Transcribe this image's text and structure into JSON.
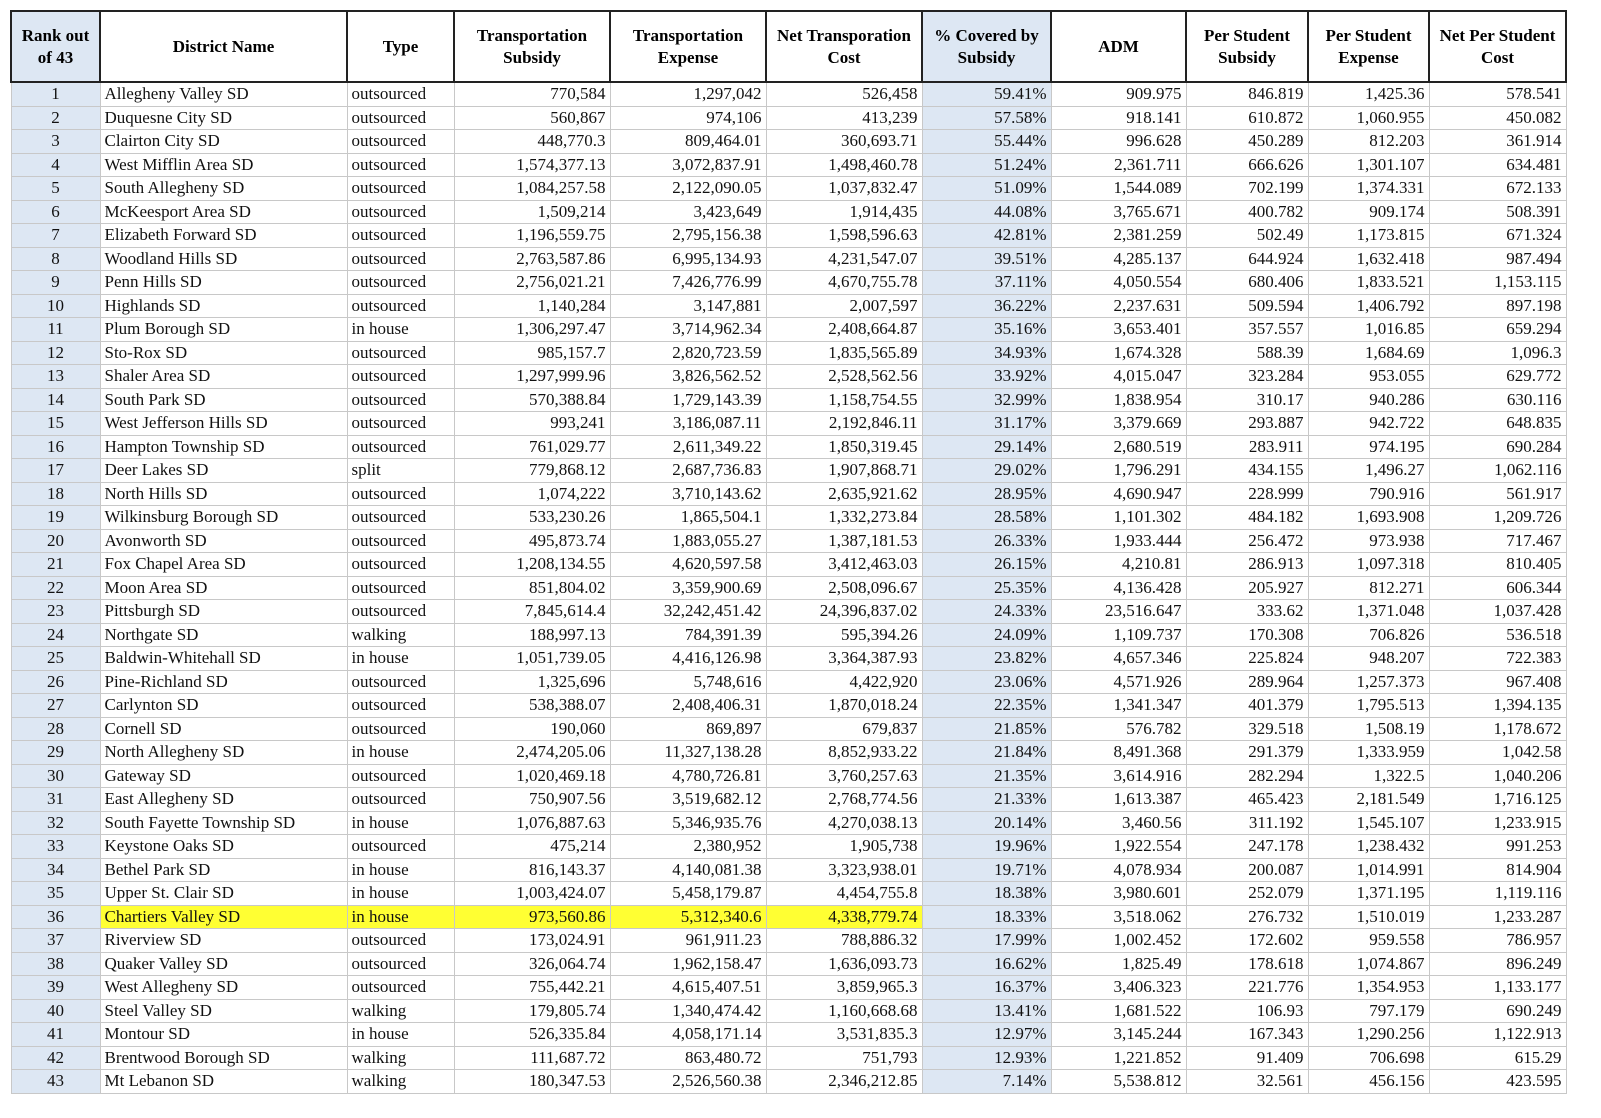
{
  "table": {
    "header": [
      "Rank out of 43",
      "District Name",
      "Type",
      "Transportation Subsidy",
      "Transportation Expense",
      "Net Transporation Cost",
      "% Covered by Subsidy",
      "ADM",
      "Per Student Subsidy",
      "Per Student Expense",
      "Net Per Student Cost"
    ],
    "rows": [
      [
        "1",
        "Allegheny Valley SD",
        "outsourced",
        "770,584",
        "1,297,042",
        "526,458",
        "59.41%",
        "909.975",
        "846.819",
        "1,425.36",
        "578.541"
      ],
      [
        "2",
        "Duquesne City SD",
        "outsourced",
        "560,867",
        "974,106",
        "413,239",
        "57.58%",
        "918.141",
        "610.872",
        "1,060.955",
        "450.082"
      ],
      [
        "3",
        "Clairton City SD",
        "outsourced",
        "448,770.3",
        "809,464.01",
        "360,693.71",
        "55.44%",
        "996.628",
        "450.289",
        "812.203",
        "361.914"
      ],
      [
        "4",
        "West Mifflin Area SD",
        "outsourced",
        "1,574,377.13",
        "3,072,837.91",
        "1,498,460.78",
        "51.24%",
        "2,361.711",
        "666.626",
        "1,301.107",
        "634.481"
      ],
      [
        "5",
        "South Allegheny SD",
        "outsourced",
        "1,084,257.58",
        "2,122,090.05",
        "1,037,832.47",
        "51.09%",
        "1,544.089",
        "702.199",
        "1,374.331",
        "672.133"
      ],
      [
        "6",
        "McKeesport Area SD",
        "outsourced",
        "1,509,214",
        "3,423,649",
        "1,914,435",
        "44.08%",
        "3,765.671",
        "400.782",
        "909.174",
        "508.391"
      ],
      [
        "7",
        "Elizabeth Forward SD",
        "outsourced",
        "1,196,559.75",
        "2,795,156.38",
        "1,598,596.63",
        "42.81%",
        "2,381.259",
        "502.49",
        "1,173.815",
        "671.324"
      ],
      [
        "8",
        "Woodland Hills SD",
        "outsourced",
        "2,763,587.86",
        "6,995,134.93",
        "4,231,547.07",
        "39.51%",
        "4,285.137",
        "644.924",
        "1,632.418",
        "987.494"
      ],
      [
        "9",
        "Penn Hills SD",
        "outsourced",
        "2,756,021.21",
        "7,426,776.99",
        "4,670,755.78",
        "37.11%",
        "4,050.554",
        "680.406",
        "1,833.521",
        "1,153.115"
      ],
      [
        "10",
        "Highlands SD",
        "outsourced",
        "1,140,284",
        "3,147,881",
        "2,007,597",
        "36.22%",
        "2,237.631",
        "509.594",
        "1,406.792",
        "897.198"
      ],
      [
        "11",
        "Plum Borough SD",
        "in house",
        "1,306,297.47",
        "3,714,962.34",
        "2,408,664.87",
        "35.16%",
        "3,653.401",
        "357.557",
        "1,016.85",
        "659.294"
      ],
      [
        "12",
        "Sto-Rox SD",
        "outsourced",
        "985,157.7",
        "2,820,723.59",
        "1,835,565.89",
        "34.93%",
        "1,674.328",
        "588.39",
        "1,684.69",
        "1,096.3"
      ],
      [
        "13",
        "Shaler Area SD",
        "outsourced",
        "1,297,999.96",
        "3,826,562.52",
        "2,528,562.56",
        "33.92%",
        "4,015.047",
        "323.284",
        "953.055",
        "629.772"
      ],
      [
        "14",
        "South Park SD",
        "outsourced",
        "570,388.84",
        "1,729,143.39",
        "1,158,754.55",
        "32.99%",
        "1,838.954",
        "310.17",
        "940.286",
        "630.116"
      ],
      [
        "15",
        "West Jefferson Hills SD",
        "outsourced",
        "993,241",
        "3,186,087.11",
        "2,192,846.11",
        "31.17%",
        "3,379.669",
        "293.887",
        "942.722",
        "648.835"
      ],
      [
        "16",
        "Hampton Township SD",
        "outsourced",
        "761,029.77",
        "2,611,349.22",
        "1,850,319.45",
        "29.14%",
        "2,680.519",
        "283.911",
        "974.195",
        "690.284"
      ],
      [
        "17",
        "Deer Lakes SD",
        "split",
        "779,868.12",
        "2,687,736.83",
        "1,907,868.71",
        "29.02%",
        "1,796.291",
        "434.155",
        "1,496.27",
        "1,062.116"
      ],
      [
        "18",
        "North Hills SD",
        "outsourced",
        "1,074,222",
        "3,710,143.62",
        "2,635,921.62",
        "28.95%",
        "4,690.947",
        "228.999",
        "790.916",
        "561.917"
      ],
      [
        "19",
        "Wilkinsburg Borough SD",
        "outsourced",
        "533,230.26",
        "1,865,504.1",
        "1,332,273.84",
        "28.58%",
        "1,101.302",
        "484.182",
        "1,693.908",
        "1,209.726"
      ],
      [
        "20",
        "Avonworth SD",
        "outsourced",
        "495,873.74",
        "1,883,055.27",
        "1,387,181.53",
        "26.33%",
        "1,933.444",
        "256.472",
        "973.938",
        "717.467"
      ],
      [
        "21",
        "Fox Chapel Area SD",
        "outsourced",
        "1,208,134.55",
        "4,620,597.58",
        "3,412,463.03",
        "26.15%",
        "4,210.81",
        "286.913",
        "1,097.318",
        "810.405"
      ],
      [
        "22",
        "Moon Area SD",
        "outsourced",
        "851,804.02",
        "3,359,900.69",
        "2,508,096.67",
        "25.35%",
        "4,136.428",
        "205.927",
        "812.271",
        "606.344"
      ],
      [
        "23",
        "Pittsburgh SD",
        "outsourced",
        "7,845,614.4",
        "32,242,451.42",
        "24,396,837.02",
        "24.33%",
        "23,516.647",
        "333.62",
        "1,371.048",
        "1,037.428"
      ],
      [
        "24",
        "Northgate SD",
        "walking",
        "188,997.13",
        "784,391.39",
        "595,394.26",
        "24.09%",
        "1,109.737",
        "170.308",
        "706.826",
        "536.518"
      ],
      [
        "25",
        "Baldwin-Whitehall SD",
        "in house",
        "1,051,739.05",
        "4,416,126.98",
        "3,364,387.93",
        "23.82%",
        "4,657.346",
        "225.824",
        "948.207",
        "722.383"
      ],
      [
        "26",
        "Pine-Richland SD",
        "outsourced",
        "1,325,696",
        "5,748,616",
        "4,422,920",
        "23.06%",
        "4,571.926",
        "289.964",
        "1,257.373",
        "967.408"
      ],
      [
        "27",
        "Carlynton SD",
        "outsourced",
        "538,388.07",
        "2,408,406.31",
        "1,870,018.24",
        "22.35%",
        "1,341.347",
        "401.379",
        "1,795.513",
        "1,394.135"
      ],
      [
        "28",
        "Cornell SD",
        "outsourced",
        "190,060",
        "869,897",
        "679,837",
        "21.85%",
        "576.782",
        "329.518",
        "1,508.19",
        "1,178.672"
      ],
      [
        "29",
        "North Allegheny SD",
        "in house",
        "2,474,205.06",
        "11,327,138.28",
        "8,852,933.22",
        "21.84%",
        "8,491.368",
        "291.379",
        "1,333.959",
        "1,042.58"
      ],
      [
        "30",
        "Gateway SD",
        "outsourced",
        "1,020,469.18",
        "4,780,726.81",
        "3,760,257.63",
        "21.35%",
        "3,614.916",
        "282.294",
        "1,322.5",
        "1,040.206"
      ],
      [
        "31",
        "East Allegheny SD",
        "outsourced",
        "750,907.56",
        "3,519,682.12",
        "2,768,774.56",
        "21.33%",
        "1,613.387",
        "465.423",
        "2,181.549",
        "1,716.125"
      ],
      [
        "32",
        "South Fayette Township SD",
        "in house",
        "1,076,887.63",
        "5,346,935.76",
        "4,270,038.13",
        "20.14%",
        "3,460.56",
        "311.192",
        "1,545.107",
        "1,233.915"
      ],
      [
        "33",
        "Keystone Oaks SD",
        "outsourced",
        "475,214",
        "2,380,952",
        "1,905,738",
        "19.96%",
        "1,922.554",
        "247.178",
        "1,238.432",
        "991.253"
      ],
      [
        "34",
        "Bethel Park SD",
        "in house",
        "816,143.37",
        "4,140,081.38",
        "3,323,938.01",
        "19.71%",
        "4,078.934",
        "200.087",
        "1,014.991",
        "814.904"
      ],
      [
        "35",
        "Upper St. Clair SD",
        "in house",
        "1,003,424.07",
        "5,458,179.87",
        "4,454,755.8",
        "18.38%",
        "3,980.601",
        "252.079",
        "1,371.195",
        "1,119.116"
      ],
      [
        "36",
        "Chartiers Valley SD",
        "in house",
        "973,560.86",
        "5,312,340.6",
        "4,338,779.74",
        "18.33%",
        "3,518.062",
        "276.732",
        "1,510.019",
        "1,233.287"
      ],
      [
        "37",
        "Riverview SD",
        "outsourced",
        "173,024.91",
        "961,911.23",
        "788,886.32",
        "17.99%",
        "1,002.452",
        "172.602",
        "959.558",
        "786.957"
      ],
      [
        "38",
        "Quaker Valley SD",
        "outsourced",
        "326,064.74",
        "1,962,158.47",
        "1,636,093.73",
        "16.62%",
        "1,825.49",
        "178.618",
        "1,074.867",
        "896.249"
      ],
      [
        "39",
        "West Allegheny SD",
        "outsourced",
        "755,442.21",
        "4,615,407.51",
        "3,859,965.3",
        "16.37%",
        "3,406.323",
        "221.776",
        "1,354.953",
        "1,133.177"
      ],
      [
        "40",
        "Steel Valley SD",
        "walking",
        "179,805.74",
        "1,340,474.42",
        "1,160,668.68",
        "13.41%",
        "1,681.522",
        "106.93",
        "797.179",
        "690.249"
      ],
      [
        "41",
        "Montour SD",
        "in house",
        "526,335.84",
        "4,058,171.14",
        "3,531,835.3",
        "12.97%",
        "3,145.244",
        "167.343",
        "1,290.256",
        "1,122.913"
      ],
      [
        "42",
        "Brentwood Borough SD",
        "walking",
        "111,687.72",
        "863,480.72",
        "751,793",
        "12.93%",
        "1,221.852",
        "91.409",
        "706.698",
        "615.29"
      ],
      [
        "43",
        "Mt Lebanon SD",
        "walking",
        "180,347.53",
        "2,526,560.38",
        "2,346,212.85",
        "7.14%",
        "5,538.812",
        "32.561",
        "456.156",
        "423.595"
      ]
    ],
    "highlight": {
      "row": 35,
      "columns": [
        1,
        2,
        3,
        4,
        5
      ],
      "color": "#ffff33"
    },
    "shaded_columns": [
      0,
      6
    ],
    "shade_color": "#dde7f3"
  }
}
